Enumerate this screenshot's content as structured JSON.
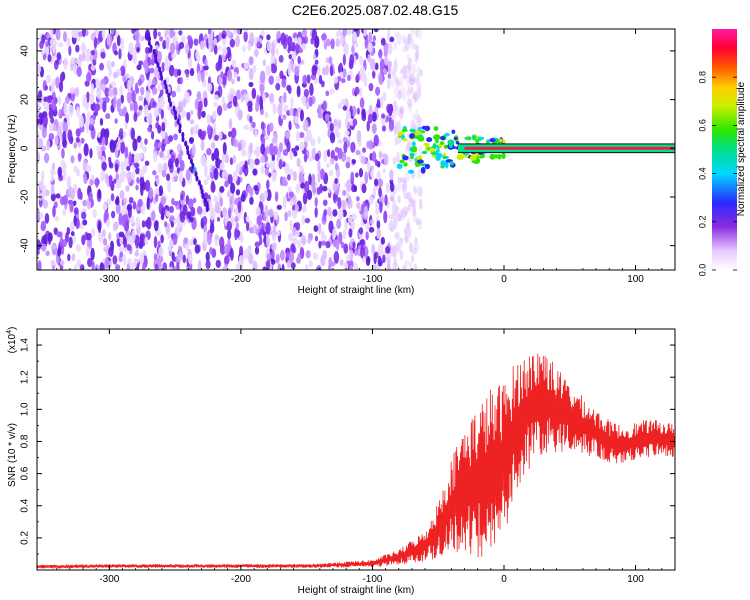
{
  "title": "C2E6.2025.087.02.48.G15",
  "colors": {
    "snr_line": "#ee2222",
    "noise_scatter": "#7b2ff7",
    "signal_core": "#ff1744"
  },
  "chart_data": [
    {
      "type": "heatmap",
      "xlabel": "Height of straight line (km)",
      "ylabel": "Frequency (Hz)",
      "xlim": [
        -355,
        130
      ],
      "ylim": [
        -50,
        49
      ],
      "xticks": [
        -300,
        -200,
        -100,
        0,
        100
      ],
      "yticks": [
        -40,
        -20,
        0,
        20,
        40
      ],
      "colorbar": {
        "label": "Normalized spectral amplitude",
        "range": [
          0,
          1
        ],
        "ticks": [
          "0.0",
          "0.2",
          "0.4",
          "0.6",
          "0.8"
        ],
        "colormap": "rainbow (white-purple-blue-cyan-green-yellow-red-magenta)"
      },
      "regions": {
        "broadband_noise": {
          "x": [
            -355,
            -75
          ],
          "freq": [
            -50,
            49
          ],
          "amplitude": 0.15
        },
        "signal_onset": {
          "x": [
            -80,
            5
          ],
          "center_freq": 0,
          "amplitude": 0.55
        },
        "steady_tone": {
          "x": [
            5,
            130
          ],
          "center_freq": 0,
          "amplitude": 1.0
        }
      },
      "features": [
        "diagonal streak near x -270 to -225 (freq 45 to -25)"
      ]
    },
    {
      "type": "line",
      "xlabel": "Height of straight line (km)",
      "ylabel": "SNR (10 * v/v)",
      "scale_label": "(x10",
      "scale_exp": "4",
      "xlim": [
        -355,
        130
      ],
      "ylim": [
        0,
        1.5
      ],
      "xticks": [
        -300,
        -200,
        -100,
        0,
        100
      ],
      "yticks": [
        0.2,
        0.4,
        0.6,
        0.8,
        1.0,
        1.2,
        1.4
      ],
      "series": [
        {
          "x": [
            -355,
            -300,
            -250,
            -200,
            -150,
            -100,
            -80,
            -60,
            -50,
            -40,
            -30,
            -20,
            -10,
            0,
            10,
            20,
            30,
            40,
            50,
            60,
            70,
            80,
            90,
            100,
            110,
            120,
            130
          ],
          "values": [
            0.02,
            0.025,
            0.025,
            0.025,
            0.025,
            0.04,
            0.08,
            0.15,
            0.25,
            0.4,
            0.5,
            0.55,
            0.6,
            0.7,
            0.9,
            1.0,
            1.05,
            1.0,
            0.95,
            0.9,
            0.85,
            0.8,
            0.78,
            0.8,
            0.82,
            0.82,
            0.8
          ],
          "noise": [
            0.01,
            0.01,
            0.01,
            0.01,
            0.01,
            0.02,
            0.04,
            0.08,
            0.15,
            0.25,
            0.35,
            0.4,
            0.45,
            0.4,
            0.35,
            0.3,
            0.3,
            0.22,
            0.18,
            0.15,
            0.13,
            0.11,
            0.1,
            0.1,
            0.1,
            0.09,
            0.09
          ]
        }
      ]
    }
  ]
}
